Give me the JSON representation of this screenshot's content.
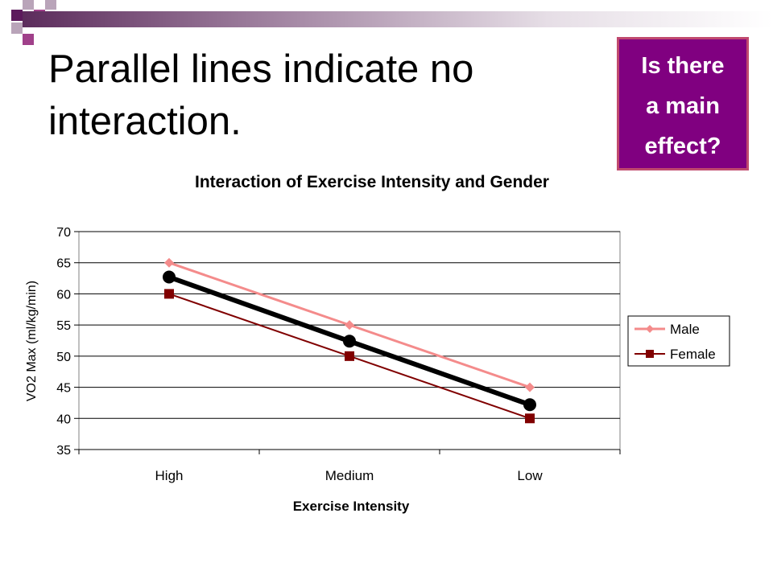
{
  "slide": {
    "title": "Parallel lines indicate no interaction.",
    "callout_lines": [
      "Is there",
      "a main",
      "effect?"
    ]
  },
  "colors": {
    "deco_dark": "#5c1a5c",
    "deco_mid": "#a0408a",
    "deco_light": "#b9a4b9",
    "callout_bg": "#800080",
    "callout_border": "#c04a6e",
    "male": "#f48b8b",
    "female": "#800000",
    "mean": "#000000"
  },
  "chart_data": {
    "type": "line",
    "title": "Interaction of Exercise Intensity and Gender",
    "xlabel": "Exercise Intensity",
    "ylabel": "VO2 Max (ml/kg/min)",
    "categories": [
      "High",
      "Medium",
      "Low"
    ],
    "ylim": [
      35,
      70
    ],
    "yticks": [
      35,
      40,
      45,
      50,
      55,
      60,
      65,
      70
    ],
    "grid": true,
    "legend_position": "right",
    "series": [
      {
        "name": "Male",
        "values": [
          65,
          55,
          45
        ],
        "color": "#f48b8b",
        "marker": "diamond"
      },
      {
        "name": "Female",
        "values": [
          60,
          50,
          40
        ],
        "color": "#800000",
        "marker": "square"
      },
      {
        "name": "",
        "values": [
          62.7,
          52.4,
          42.2
        ],
        "color": "#000000",
        "marker": "circle"
      }
    ]
  }
}
